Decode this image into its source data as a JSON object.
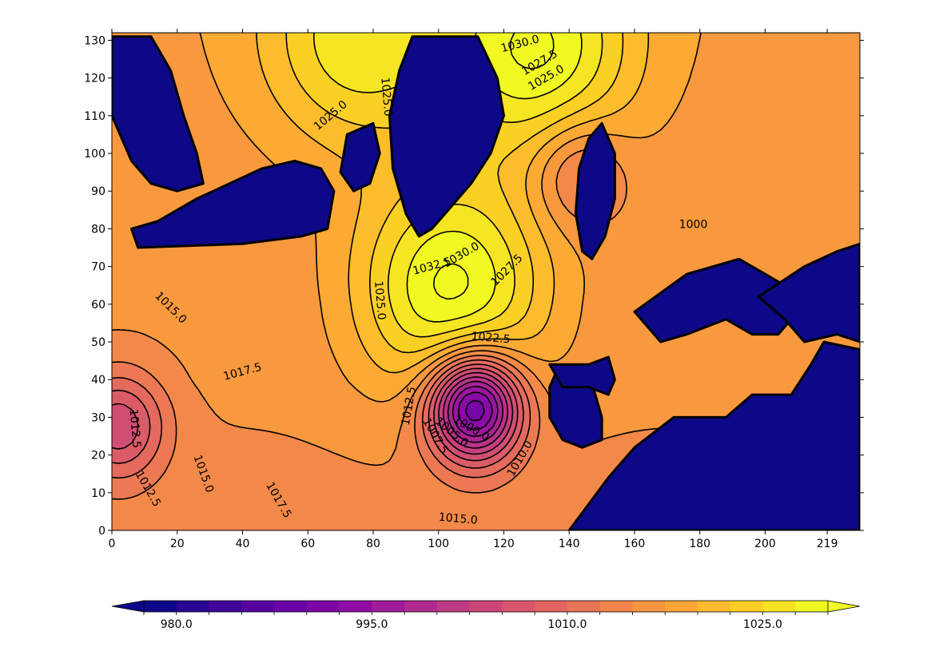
{
  "chart_data": {
    "type": "contour",
    "title": "",
    "xlabel": "",
    "ylabel": "",
    "xlim": [
      0,
      229
    ],
    "ylim": [
      0,
      132
    ],
    "x_ticks": [
      "0",
      "20",
      "40",
      "60",
      "80",
      "100",
      "120",
      "140",
      "160",
      "180",
      "200",
      "219"
    ],
    "y_ticks": [
      "0",
      "10",
      "20",
      "30",
      "40",
      "50",
      "60",
      "70",
      "80",
      "90",
      "100",
      "110",
      "120",
      "130"
    ],
    "value_range": [
      977.5,
      1030.0
    ],
    "level_step": 2.5,
    "colormap": "plasma",
    "land_color": "#0d0887",
    "features": [
      {
        "kind": "high",
        "center": [
          104,
          64
        ],
        "value": 1033.0
      },
      {
        "kind": "high",
        "center": [
          130,
          128
        ],
        "value": 1031.5
      },
      {
        "kind": "high",
        "center": [
          75,
          130
        ],
        "value": 1028.0
      },
      {
        "kind": "low",
        "center": [
          111,
          33
        ],
        "value": 987.5
      },
      {
        "kind": "low",
        "center": [
          2,
          28
        ],
        "value": 1006.0
      },
      {
        "kind": "low",
        "center": [
          143,
          95
        ],
        "value": 1011.0
      }
    ],
    "contour_labels": [
      {
        "text": "1030.0",
        "x": 125,
        "y": 129,
        "angle": 15
      },
      {
        "text": "1027.5",
        "x": 131,
        "y": 124,
        "angle": 30
      },
      {
        "text": "1025.0",
        "x": 133,
        "y": 120,
        "angle": 30
      },
      {
        "text": "1025.0",
        "x": 84,
        "y": 115,
        "angle": -85
      },
      {
        "text": "1025.0",
        "x": 67,
        "y": 110,
        "angle": 40
      },
      {
        "text": "1030.0",
        "x": 107,
        "y": 73,
        "angle": 30
      },
      {
        "text": "1032.5",
        "x": 98,
        "y": 70,
        "angle": 15
      },
      {
        "text": "1027.5",
        "x": 121,
        "y": 69,
        "angle": 45
      },
      {
        "text": "1025.0",
        "x": 82,
        "y": 61,
        "angle": -85
      },
      {
        "text": "1022.5",
        "x": 116,
        "y": 51,
        "angle": -5
      },
      {
        "text": "1017.5",
        "x": 40,
        "y": 42,
        "angle": 15
      },
      {
        "text": "1015.0",
        "x": 18,
        "y": 59,
        "angle": -45
      },
      {
        "text": "1012.5",
        "x": 91,
        "y": 33,
        "angle": 80
      },
      {
        "text": "1000.0",
        "x": 110,
        "y": 27,
        "angle": -30
      },
      {
        "text": "1005.0",
        "x": 104,
        "y": 26,
        "angle": -40
      },
      {
        "text": "1007.5",
        "x": 99,
        "y": 25,
        "angle": -60
      },
      {
        "text": "1010.0",
        "x": 125,
        "y": 19,
        "angle": 60
      },
      {
        "text": "1015.0",
        "x": 106,
        "y": 3,
        "angle": -5
      },
      {
        "text": "1012.5",
        "x": 7,
        "y": 27,
        "angle": -85
      },
      {
        "text": "1012.5",
        "x": 11,
        "y": 11,
        "angle": -60
      },
      {
        "text": "1015.0",
        "x": 28,
        "y": 15,
        "angle": -70
      },
      {
        "text": "1017.5",
        "x": 51,
        "y": 8,
        "angle": -60
      },
      {
        "text": "1000",
        "x": 178,
        "y": 81,
        "angle": 0
      }
    ],
    "colorbar": {
      "ticks": [
        "980.0",
        "995.0",
        "1010.0",
        "1025.0"
      ],
      "extend": "both"
    }
  }
}
